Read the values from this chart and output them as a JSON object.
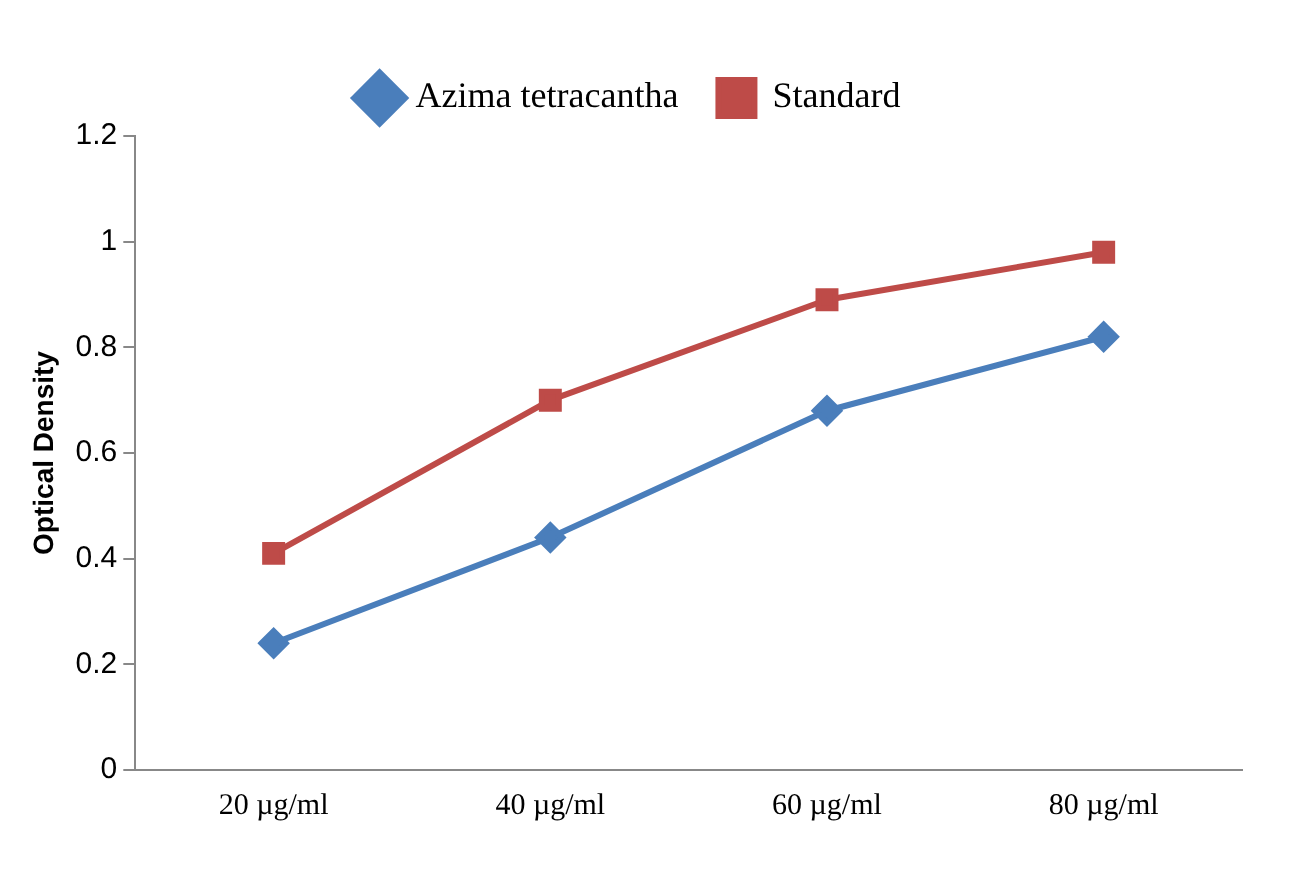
{
  "chart_data": {
    "type": "line",
    "ylabel": "Optical Density",
    "categories": [
      "20 µg/ml",
      "40 µg/ml",
      "60 µg/ml",
      "80 µg/ml"
    ],
    "series": [
      {
        "name": "Azima tetracantha",
        "color": "#4a7ebb",
        "values": [
          0.24,
          0.44,
          0.68,
          0.82
        ],
        "marker": "diamond"
      },
      {
        "name": "Standard",
        "color": "#be4b48",
        "values": [
          0.41,
          0.7,
          0.89,
          0.98
        ],
        "marker": "square"
      }
    ],
    "ylim": [
      0,
      1.2
    ],
    "yticks": [
      0,
      0.2,
      0.4,
      0.6,
      0.8,
      1,
      1.2
    ],
    "grid": false,
    "legend": "top"
  }
}
